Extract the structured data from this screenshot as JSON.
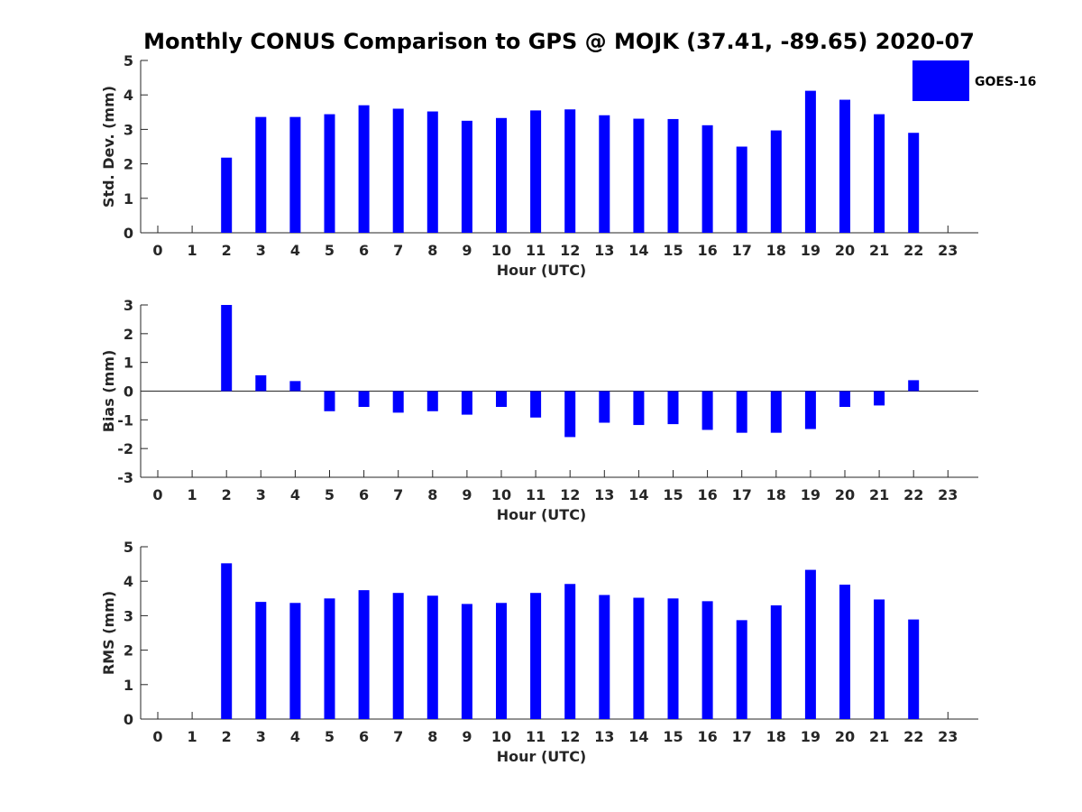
{
  "figure": {
    "title": "Monthly CONUS Comparison to GPS @ MOJK (37.41, -89.65) 2020-07",
    "bar_color": "#0000ff",
    "legend_label": "GOES-16"
  },
  "chart_data": [
    {
      "type": "bar",
      "ylabel": "Std. Dev. (mm)",
      "xlabel": "Hour (UTC)",
      "ylim": [
        0,
        5
      ],
      "yticks": [
        0,
        1,
        2,
        3,
        4,
        5
      ],
      "categories": [
        0,
        1,
        2,
        3,
        4,
        5,
        6,
        7,
        8,
        9,
        10,
        11,
        12,
        13,
        14,
        15,
        16,
        17,
        18,
        19,
        20,
        21,
        22,
        23
      ],
      "series": [
        {
          "name": "GOES-16",
          "values": [
            null,
            null,
            2.18,
            3.36,
            3.36,
            3.44,
            3.7,
            3.6,
            3.52,
            3.25,
            3.33,
            3.55,
            3.58,
            3.41,
            3.31,
            3.3,
            3.12,
            2.5,
            2.97,
            4.12,
            3.86,
            3.44,
            2.9,
            null
          ]
        }
      ],
      "legend": "top-right"
    },
    {
      "type": "bar",
      "ylabel": "Bias (mm)",
      "xlabel": "Hour (UTC)",
      "ylim": [
        -3,
        3
      ],
      "yticks": [
        -3,
        -2,
        -1,
        0,
        1,
        2,
        3
      ],
      "categories": [
        0,
        1,
        2,
        3,
        4,
        5,
        6,
        7,
        8,
        9,
        10,
        11,
        12,
        13,
        14,
        15,
        16,
        17,
        18,
        19,
        20,
        21,
        22,
        23
      ],
      "series": [
        {
          "name": "GOES-16",
          "values": [
            null,
            null,
            3.0,
            0.55,
            0.35,
            -0.7,
            -0.55,
            -0.75,
            -0.7,
            -0.82,
            -0.55,
            -0.92,
            -1.6,
            -1.1,
            -1.18,
            -1.15,
            -1.35,
            -1.45,
            -1.45,
            -1.32,
            -0.55,
            -0.5,
            0.38,
            null
          ]
        }
      ]
    },
    {
      "type": "bar",
      "ylabel": "RMS (mm)",
      "xlabel": "Hour (UTC)",
      "ylim": [
        0,
        5
      ],
      "yticks": [
        0,
        1,
        2,
        3,
        4,
        5
      ],
      "categories": [
        0,
        1,
        2,
        3,
        4,
        5,
        6,
        7,
        8,
        9,
        10,
        11,
        12,
        13,
        14,
        15,
        16,
        17,
        18,
        19,
        20,
        21,
        22,
        23
      ],
      "series": [
        {
          "name": "GOES-16",
          "values": [
            null,
            null,
            4.52,
            3.4,
            3.37,
            3.5,
            3.74,
            3.66,
            3.58,
            3.34,
            3.37,
            3.66,
            3.92,
            3.6,
            3.52,
            3.5,
            3.42,
            2.87,
            3.3,
            4.33,
            3.9,
            3.47,
            2.89,
            null
          ]
        }
      ]
    }
  ]
}
